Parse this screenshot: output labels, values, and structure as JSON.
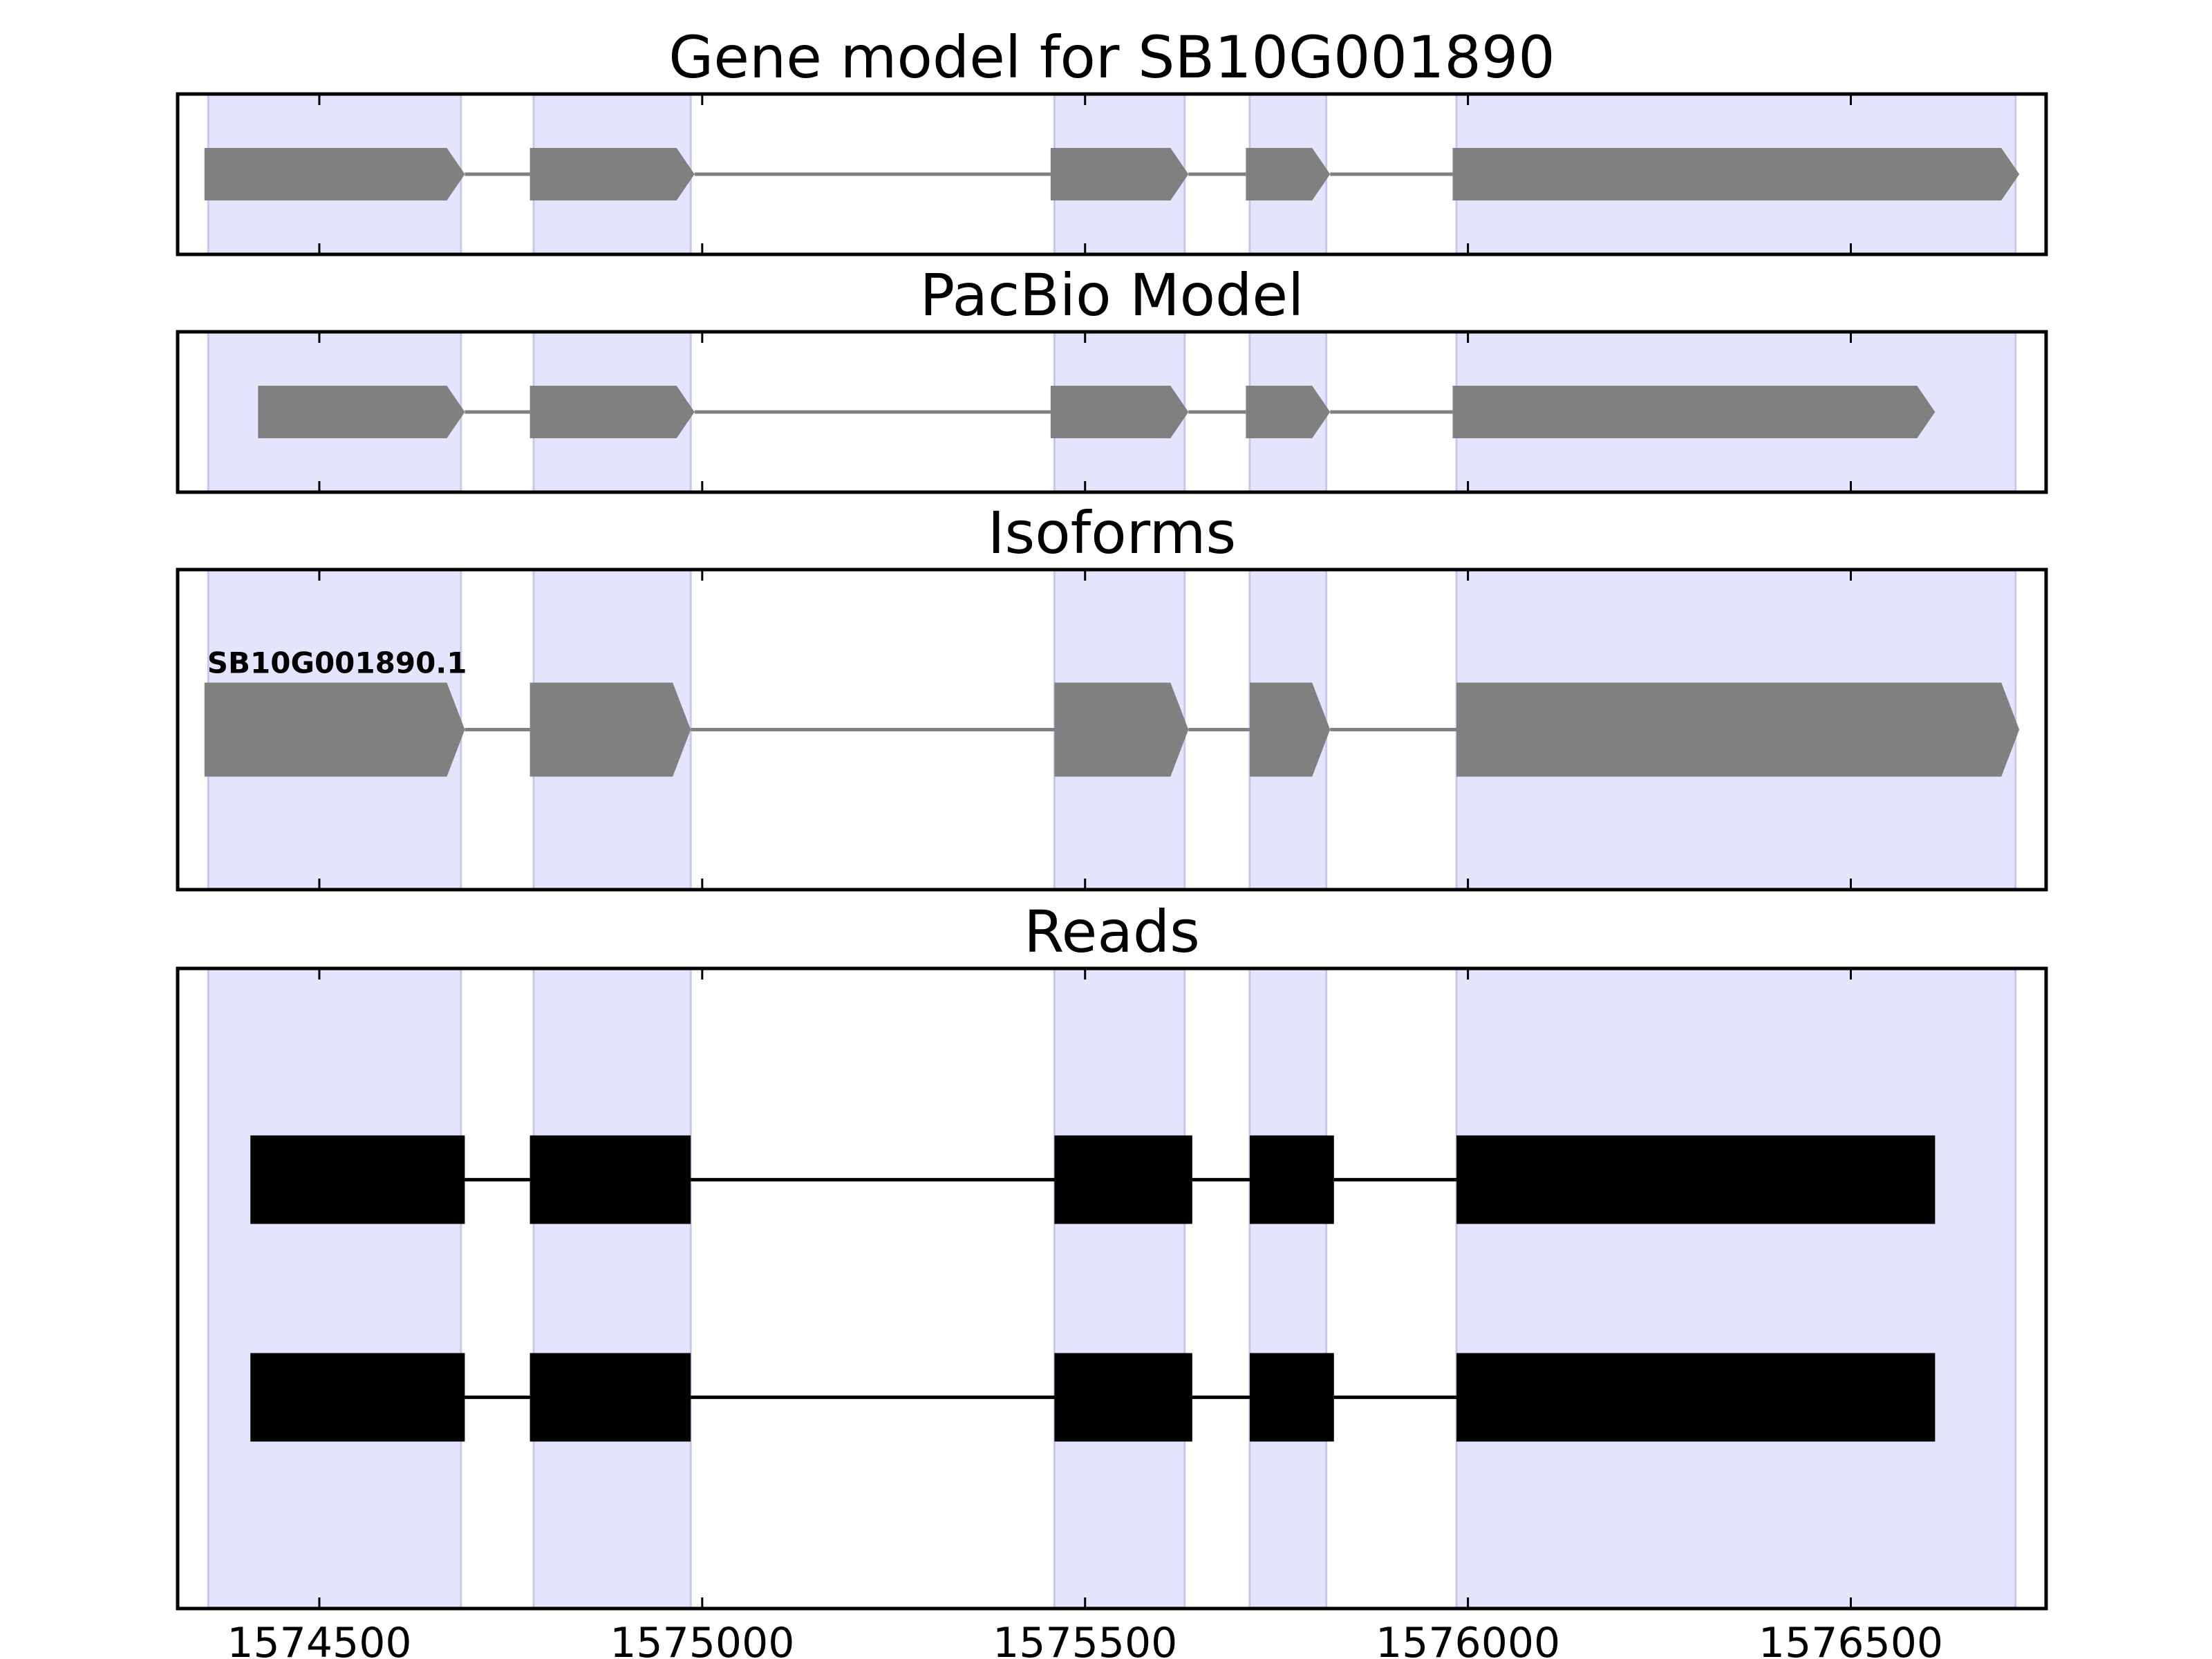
{
  "chart_data": {
    "type": "gene-track",
    "x_axis": {
      "range": [
        1574315,
        1576755
      ],
      "ticks": [
        1574500,
        1575000,
        1575500,
        1576000,
        1576500
      ],
      "tick_labels": [
        "1574500",
        "1575000",
        "1575500",
        "1576000",
        "1576500"
      ]
    },
    "highlight_regions": [
      [
        1574355,
        1574685
      ],
      [
        1574780,
        1574985
      ],
      [
        1575460,
        1575630
      ],
      [
        1575715,
        1575815
      ],
      [
        1575985,
        1576715
      ]
    ],
    "colors": {
      "highlight": "#e4e4fc",
      "highlight_edge": "#c8c8ec",
      "gene_feature": "#808080",
      "read": "#000000",
      "axes": "#000000"
    },
    "panels": [
      {
        "title": "Gene model for SB10G001890",
        "style": "arrow-exons",
        "tracks": [
          {
            "label": "",
            "exons": [
              [
                1574350,
                1574690
              ],
              [
                1574775,
                1574990
              ],
              [
                1575455,
                1575635
              ],
              [
                1575710,
                1575820
              ],
              [
                1575980,
                1576720
              ]
            ]
          }
        ]
      },
      {
        "title": "PacBio Model",
        "style": "arrow-exons",
        "tracks": [
          {
            "label": "",
            "exons": [
              [
                1574420,
                1574690
              ],
              [
                1574775,
                1574990
              ],
              [
                1575455,
                1575635
              ],
              [
                1575710,
                1575820
              ],
              [
                1575980,
                1576610
              ]
            ]
          }
        ]
      },
      {
        "title": "Isoforms",
        "style": "arrow-exons",
        "tracks": [
          {
            "label": "SB10G001890.1",
            "exons": [
              [
                1574350,
                1574690
              ],
              [
                1574775,
                1574985
              ],
              [
                1575460,
                1575635
              ],
              [
                1575715,
                1575820
              ],
              [
                1575985,
                1576720
              ]
            ]
          }
        ]
      },
      {
        "title": "Reads",
        "style": "block-exons",
        "tracks": [
          {
            "label": "",
            "exons": [
              [
                1574410,
                1574690
              ],
              [
                1574775,
                1574985
              ],
              [
                1575460,
                1575640
              ],
              [
                1575715,
                1575825
              ],
              [
                1575985,
                1576610
              ]
            ]
          },
          {
            "label": "",
            "exons": [
              [
                1574410,
                1574690
              ],
              [
                1574775,
                1574985
              ],
              [
                1575460,
                1575640
              ],
              [
                1575715,
                1575825
              ],
              [
                1575985,
                1576610
              ]
            ]
          }
        ]
      }
    ]
  }
}
